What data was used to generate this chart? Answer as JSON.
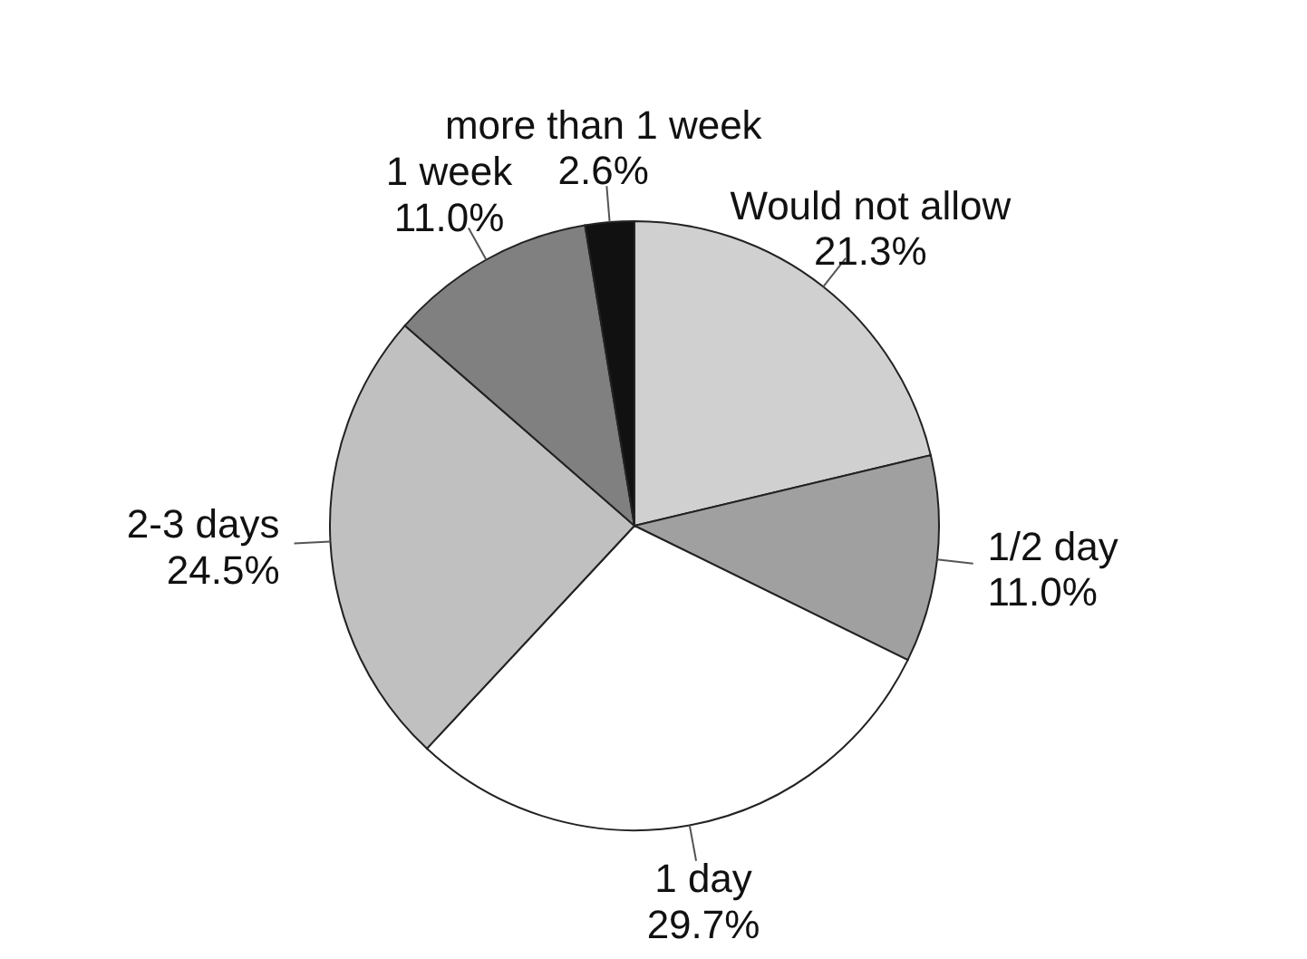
{
  "chart_data": {
    "type": "pie",
    "categories": [
      "Would not allow",
      "1/2 day",
      "1 day",
      "2-3 days",
      "1 week",
      "more than 1 week"
    ],
    "values": [
      21.3,
      11.0,
      29.7,
      24.5,
      11.0,
      2.6
    ],
    "value_labels": [
      "21.3%",
      "11.0%",
      "29.7%",
      "24.5%",
      "11.0%",
      "2.6%"
    ],
    "colors": [
      "#d0d0d0",
      "#a0a0a0",
      "#ffffff",
      "#c0c0c0",
      "#808080",
      "#111111"
    ],
    "legend": false
  }
}
